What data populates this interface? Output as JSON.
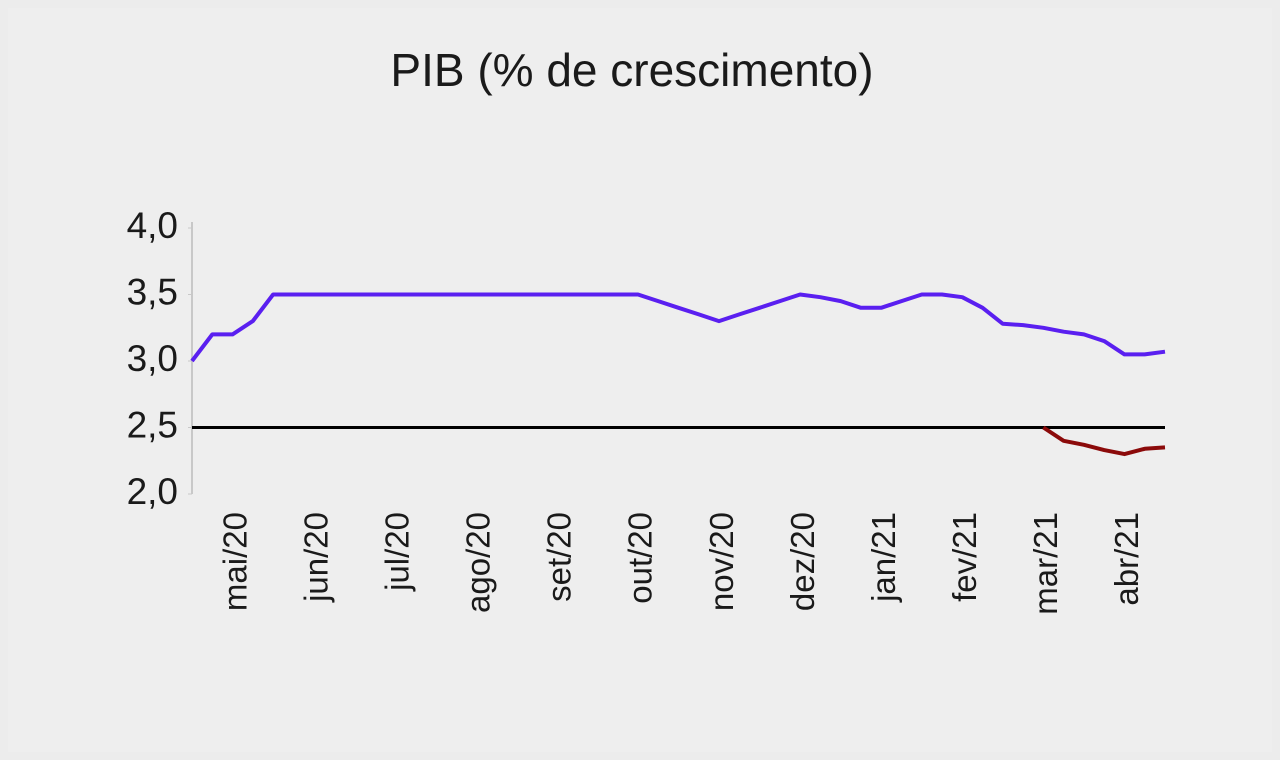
{
  "chart_data": {
    "type": "line",
    "title": "PIB (% de crescimento)",
    "categories": [
      null,
      null,
      "mai/20",
      null,
      null,
      null,
      "jun/20",
      null,
      null,
      null,
      "jul/20",
      null,
      null,
      null,
      "ago/20",
      null,
      null,
      null,
      "set/20",
      null,
      null,
      null,
      "out/20",
      null,
      null,
      null,
      "nov/20",
      null,
      null,
      null,
      "dez/20",
      null,
      null,
      null,
      "jan/21",
      null,
      null,
      null,
      "fev/21",
      null,
      null,
      null,
      "mar/21",
      null,
      null,
      null,
      "abr/21",
      null,
      null
    ],
    "series": [
      {
        "color": "#5a1ff0",
        "values": [
          3.0,
          3.2,
          3.2,
          3.3,
          3.5,
          3.5,
          3.5,
          3.5,
          3.5,
          3.5,
          3.5,
          3.5,
          3.5,
          3.5,
          3.5,
          3.5,
          3.5,
          3.5,
          3.5,
          3.5,
          3.5,
          3.5,
          3.5,
          3.45,
          3.4,
          3.35,
          3.3,
          3.35,
          3.4,
          3.45,
          3.5,
          3.48,
          3.45,
          3.4,
          3.4,
          3.45,
          3.5,
          3.5,
          3.48,
          3.4,
          3.28,
          3.27,
          3.25,
          3.22,
          3.2,
          3.15,
          3.05,
          3.05,
          3.07
        ]
      },
      {
        "color": "#8b0a0a",
        "values": [
          null,
          null,
          null,
          null,
          null,
          null,
          null,
          null,
          null,
          null,
          null,
          null,
          null,
          null,
          null,
          null,
          null,
          null,
          null,
          null,
          null,
          null,
          null,
          null,
          null,
          null,
          null,
          null,
          null,
          null,
          null,
          null,
          null,
          null,
          null,
          null,
          null,
          null,
          null,
          null,
          null,
          null,
          2.5,
          2.4,
          2.37,
          2.33,
          2.3,
          2.34,
          2.35
        ]
      }
    ],
    "reference": {
      "value": 2.5,
      "color": "#000000"
    },
    "ylim": [
      2.0,
      4.0
    ],
    "yticks": [
      {
        "value": 2.0,
        "label": "2,0"
      },
      {
        "value": 2.5,
        "label": "2,5"
      },
      {
        "value": 3.0,
        "label": "3,0"
      },
      {
        "value": 3.5,
        "label": "3,5"
      },
      {
        "value": 4.0,
        "label": "4,0"
      }
    ],
    "grid": false
  }
}
